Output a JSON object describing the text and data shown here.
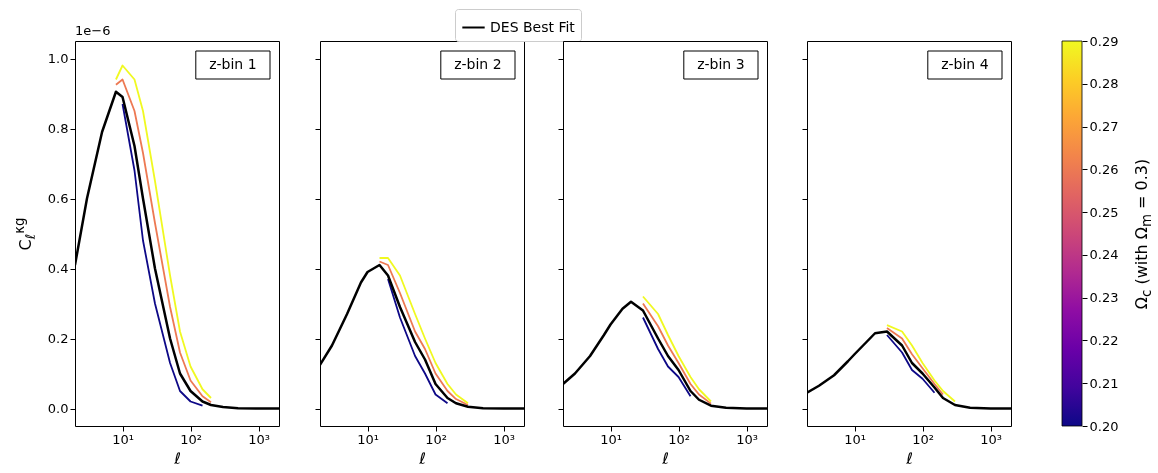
{
  "chart_data": [
    {
      "type": "line",
      "xlabel": "ℓ",
      "ylabel": "C$_{ℓ}$$^{κg}$",
      "log": "x",
      "xlim": [
        2,
        2000
      ],
      "xticks": [
        {
          "value": 10,
          "label": "10¹"
        },
        {
          "value": 100,
          "label": "10²"
        },
        {
          "value": 1000,
          "label": "10³"
        }
      ],
      "ylim": [
        -0.05,
        1.05
      ],
      "yticks": [
        {
          "value": 0,
          "label": "0.0"
        },
        0.2,
        0.4,
        0.6,
        0.8,
        {
          "value": 1.0,
          "label": "1.0"
        }
      ],
      "annotations": [
        "1e−6",
        "z-bin 1"
      ],
      "x": [
        2,
        3,
        5,
        8,
        10,
        15,
        20,
        30,
        50,
        70,
        100,
        150,
        200,
        300,
        500,
        1000,
        2000
      ],
      "series": [
        {
          "color": "#0d0887",
          "values": [
            null,
            null,
            null,
            null,
            0.87,
            0.68,
            0.48,
            0.3,
            0.13,
            0.05,
            0.02,
            0.008,
            null,
            null,
            null,
            null,
            null
          ]
        },
        {
          "color": "#ed7953",
          "values": [
            null,
            null,
            null,
            0.925,
            0.94,
            0.85,
            0.73,
            0.53,
            0.29,
            0.16,
            0.08,
            0.035,
            0.018,
            null,
            null,
            null,
            null
          ]
        },
        {
          "color": "#f0f921",
          "values": [
            null,
            null,
            null,
            0.94,
            0.98,
            0.94,
            0.85,
            0.65,
            0.38,
            0.22,
            0.12,
            0.055,
            0.03,
            null,
            null,
            null,
            null
          ]
        },
        {
          "color": "#000000",
          "values": [
            0.41,
            0.6,
            0.79,
            0.905,
            0.89,
            0.75,
            0.6,
            0.4,
            0.2,
            0.1,
            0.05,
            0.02,
            0.01,
            0.004,
            0.001,
            0,
            0
          ]
        }
      ]
    },
    {
      "type": "line",
      "xlabel": "ℓ",
      "log": "x",
      "xlim": [
        2,
        2000
      ],
      "xticks": [
        {
          "value": 10,
          "label": "10¹"
        },
        {
          "value": 100,
          "label": "10²"
        },
        {
          "value": 1000,
          "label": "10³"
        }
      ],
      "ylim": [
        -0.05,
        1.05
      ],
      "yticks": [
        {
          "value": 0,
          "label": null
        },
        {
          "value": 0.2,
          "label": null
        },
        {
          "value": 0.4,
          "label": null
        },
        {
          "value": 0.6,
          "label": null
        },
        {
          "value": 0.8,
          "label": null
        },
        {
          "value": 1.0,
          "label": null
        }
      ],
      "tick_labels": "x",
      "legend": "top",
      "annotations": [
        "z-bin 2"
      ],
      "x": [
        2,
        3,
        5,
        8,
        10,
        15,
        20,
        30,
        50,
        70,
        100,
        150,
        200,
        300,
        500,
        1000,
        2000
      ],
      "series": [
        {
          "color": "#0d0887",
          "values": [
            null,
            null,
            null,
            null,
            null,
            null,
            0.37,
            0.26,
            0.15,
            0.1,
            0.04,
            0.015,
            null,
            null,
            null,
            null,
            null
          ]
        },
        {
          "color": "#ed7953",
          "values": [
            null,
            null,
            null,
            null,
            null,
            0.42,
            0.41,
            0.33,
            0.22,
            0.17,
            0.1,
            0.05,
            0.027,
            0.01,
            null,
            null,
            null
          ]
        },
        {
          "color": "#f0f921",
          "values": [
            null,
            null,
            null,
            null,
            null,
            0.43,
            0.43,
            0.38,
            0.27,
            0.2,
            0.13,
            0.07,
            0.04,
            0.015,
            null,
            null,
            null
          ]
        },
        {
          "name": "DES Best Fit",
          "color": "#000000",
          "values": [
            0.125,
            0.18,
            0.27,
            0.36,
            0.39,
            0.41,
            0.38,
            0.29,
            0.19,
            0.14,
            0.07,
            0.03,
            0.015,
            0.005,
            0.001,
            0,
            0
          ]
        }
      ]
    },
    {
      "type": "line",
      "xlabel": "ℓ",
      "log": "x",
      "xlim": [
        2,
        2000
      ],
      "xticks": [
        {
          "value": 10,
          "label": "10¹"
        },
        {
          "value": 100,
          "label": "10²"
        },
        {
          "value": 1000,
          "label": "10³"
        }
      ],
      "ylim": [
        -0.05,
        1.05
      ],
      "yticks": [
        {
          "value": 0,
          "label": null
        },
        {
          "value": 0.2,
          "label": null
        },
        {
          "value": 0.4,
          "label": null
        },
        {
          "value": 0.6,
          "label": null
        },
        {
          "value": 0.8,
          "label": null
        },
        {
          "value": 1.0,
          "label": null
        }
      ],
      "tick_labels": "x",
      "annotations": [
        "z-bin 3"
      ],
      "x": [
        2,
        3,
        5,
        8,
        10,
        15,
        20,
        30,
        50,
        70,
        100,
        150,
        200,
        300,
        500,
        1000,
        2000
      ],
      "series": [
        {
          "color": "#0d0887",
          "values": [
            null,
            null,
            null,
            null,
            null,
            null,
            null,
            0.26,
            0.17,
            0.12,
            0.09,
            0.035,
            null,
            null,
            null,
            null,
            null
          ]
        },
        {
          "color": "#ed7953",
          "values": [
            null,
            null,
            null,
            null,
            null,
            null,
            null,
            0.3,
            0.235,
            0.18,
            0.13,
            0.07,
            0.04,
            0.014,
            null,
            null,
            null
          ]
        },
        {
          "color": "#f0f921",
          "values": [
            null,
            null,
            null,
            null,
            null,
            null,
            null,
            0.32,
            0.27,
            0.21,
            0.15,
            0.09,
            0.055,
            0.02,
            null,
            null,
            null
          ]
        },
        {
          "color": "#000000",
          "values": [
            0.07,
            0.1,
            0.15,
            0.21,
            0.24,
            0.285,
            0.305,
            0.28,
            0.2,
            0.15,
            0.11,
            0.05,
            0.025,
            0.008,
            0.002,
            0,
            0
          ]
        }
      ]
    },
    {
      "type": "line",
      "xlabel": "ℓ",
      "log": "x",
      "xlim": [
        2,
        2000
      ],
      "xticks": [
        {
          "value": 10,
          "label": "10¹"
        },
        {
          "value": 100,
          "label": "10²"
        },
        {
          "value": 1000,
          "label": "10³"
        }
      ],
      "ylim": [
        -0.05,
        1.05
      ],
      "yticks": [
        {
          "value": 0,
          "label": null
        },
        {
          "value": 0.2,
          "label": null
        },
        {
          "value": 0.4,
          "label": null
        },
        {
          "value": 0.6,
          "label": null
        },
        {
          "value": 0.8,
          "label": null
        },
        {
          "value": 1.0,
          "label": null
        }
      ],
      "tick_labels": "x",
      "annotations": [
        "z-bin 4"
      ],
      "clabel": "Ω$_{c}$ (with Ω$_{m}$ = 0.3)",
      "clim": [
        0.2,
        0.29
      ],
      "cticks": [
        {
          "value": 0.2,
          "label": "0.20"
        },
        0.21,
        0.22,
        0.23,
        0.24,
        0.25,
        0.26,
        0.27,
        0.28,
        0.29
      ],
      "x": [
        2,
        3,
        5,
        8,
        10,
        15,
        20,
        30,
        50,
        70,
        100,
        150,
        200,
        300,
        500,
        1000,
        2000
      ],
      "series": [
        {
          "color": "#0d0887",
          "values": [
            null,
            null,
            null,
            null,
            null,
            null,
            null,
            0.21,
            0.16,
            0.11,
            0.085,
            0.045,
            null,
            null,
            null,
            null,
            null
          ]
        },
        {
          "color": "#ed7953",
          "values": [
            null,
            null,
            null,
            null,
            null,
            null,
            null,
            0.23,
            0.2,
            0.155,
            0.115,
            0.07,
            0.04,
            null,
            null,
            null,
            null
          ]
        },
        {
          "color": "#f0f921",
          "values": [
            null,
            null,
            null,
            null,
            null,
            null,
            null,
            0.238,
            0.22,
            0.18,
            0.13,
            0.08,
            0.05,
            0.02,
            null,
            null,
            null
          ]
        },
        {
          "color": "#000000",
          "values": [
            0.045,
            0.065,
            0.095,
            0.135,
            0.155,
            0.19,
            0.215,
            0.22,
            0.18,
            0.13,
            0.1,
            0.06,
            0.03,
            0.01,
            0.002,
            0,
            0
          ]
        }
      ]
    }
  ]
}
